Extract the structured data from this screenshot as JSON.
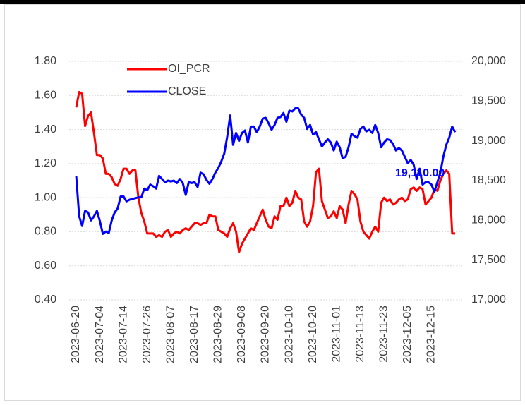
{
  "chart_data": {
    "type": "line",
    "categories": [
      "2023-06-20",
      null,
      null,
      null,
      null,
      null,
      null,
      null,
      "2023-07-04",
      null,
      null,
      null,
      null,
      null,
      null,
      null,
      "2023-07-14",
      null,
      null,
      null,
      null,
      null,
      null,
      null,
      "2023-07-26",
      null,
      null,
      null,
      null,
      null,
      null,
      null,
      "2023-08-07",
      null,
      null,
      null,
      null,
      null,
      null,
      null,
      "2023-08-17",
      null,
      null,
      null,
      null,
      null,
      null,
      null,
      "2023-08-29",
      null,
      null,
      null,
      null,
      null,
      null,
      null,
      "2023-09-08",
      null,
      null,
      null,
      null,
      null,
      null,
      null,
      "2023-09-20",
      null,
      null,
      null,
      null,
      null,
      null,
      null,
      "2023-10-10",
      null,
      null,
      null,
      null,
      null,
      null,
      null,
      "2023-10-20",
      null,
      null,
      null,
      null,
      null,
      null,
      null,
      "2023-11-01",
      null,
      null,
      null,
      null,
      null,
      null,
      null,
      "2023-11-13",
      null,
      null,
      null,
      null,
      null,
      null,
      null,
      "2023-11-23",
      null,
      null,
      null,
      null,
      null,
      null,
      null,
      "2023-12-05",
      null,
      null,
      null,
      null,
      null,
      null,
      null,
      "2023-12-15",
      null,
      null,
      null,
      null,
      null,
      null,
      null,
      null
    ],
    "series": [
      {
        "name": "OI_PCR",
        "color": "#ff0000",
        "values": [
          1.53,
          1.62,
          1.61,
          1.42,
          1.48,
          1.5,
          1.38,
          1.25,
          1.25,
          1.23,
          1.14,
          1.14,
          1.12,
          1.08,
          1.07,
          1.11,
          1.17,
          1.17,
          1.14,
          1.16,
          1.16,
          1.0,
          0.91,
          0.86,
          0.79,
          0.79,
          0.79,
          0.77,
          0.78,
          0.77,
          0.8,
          0.81,
          0.77,
          0.79,
          0.8,
          0.79,
          0.81,
          0.82,
          0.81,
          0.83,
          0.85,
          0.85,
          0.84,
          0.85,
          0.85,
          0.9,
          0.89,
          0.89,
          0.81,
          0.8,
          0.79,
          0.77,
          0.82,
          0.85,
          0.8,
          0.68,
          0.73,
          0.76,
          0.79,
          0.82,
          0.81,
          0.85,
          0.89,
          0.93,
          0.87,
          0.83,
          0.82,
          0.89,
          0.87,
          0.95,
          0.95,
          1.0,
          0.95,
          0.97,
          1.04,
          1.0,
          0.99,
          0.86,
          0.83,
          0.86,
          0.95,
          1.15,
          1.17,
          0.98,
          0.93,
          0.88,
          0.89,
          0.92,
          0.88,
          0.95,
          0.93,
          0.85,
          0.96,
          1.04,
          1.02,
          0.99,
          0.86,
          0.8,
          0.78,
          0.76,
          0.8,
          0.83,
          0.8,
          0.97,
          1.0,
          0.98,
          0.99,
          0.96,
          0.97,
          0.99,
          1.0,
          0.98,
          0.99,
          1.05,
          1.06,
          1.04,
          1.06,
          1.05,
          0.96,
          0.98,
          1.0,
          1.05,
          1.04,
          1.1,
          1.14,
          1.16,
          1.14,
          0.79,
          0.79
        ]
      },
      {
        "name": "CLOSE",
        "color": "#0000ff",
        "axis": "y2",
        "values": [
          18560,
          18050,
          17930,
          18120,
          18100,
          18000,
          18050,
          18120,
          17990,
          17830,
          17860,
          17840,
          18000,
          18100,
          18150,
          18300,
          18300,
          18240,
          18260,
          18270,
          18280,
          18290,
          18290,
          18400,
          18380,
          18450,
          18430,
          18400,
          18560,
          18520,
          18480,
          18500,
          18490,
          18500,
          18470,
          18520,
          18470,
          18320,
          18480,
          18470,
          18480,
          18420,
          18600,
          18580,
          18510,
          18460,
          18520,
          18600,
          18660,
          18740,
          18840,
          19050,
          19320,
          18950,
          19100,
          19000,
          19100,
          19130,
          18980,
          19180,
          19180,
          19110,
          19180,
          19280,
          19290,
          19220,
          19140,
          19200,
          19290,
          19300,
          19350,
          19240,
          19380,
          19370,
          19410,
          19410,
          19330,
          19290,
          19150,
          19200,
          19080,
          19110,
          19020,
          18930,
          18980,
          19020,
          18980,
          18880,
          18990,
          18920,
          18780,
          18800,
          18920,
          19090,
          19060,
          19040,
          19150,
          19180,
          19120,
          19140,
          19100,
          19200,
          19100,
          18920,
          18980,
          19020,
          19010,
          18960,
          18880,
          18910,
          18880,
          18800,
          18720,
          18760,
          18700,
          18520,
          18650,
          18450,
          18480,
          18480,
          18450,
          18360,
          18480,
          18600,
          18800,
          18950,
          19040,
          19180,
          19110
        ]
      }
    ],
    "ylim": [
      0.4,
      1.8
    ],
    "yticks": [
      {
        "value": 0.4,
        "label": "0.40"
      },
      {
        "value": 0.6,
        "label": "0.60"
      },
      {
        "value": 0.8,
        "label": "0.80"
      },
      {
        "value": 1.0,
        "label": "1.00"
      },
      {
        "value": 1.2,
        "label": "1.20"
      },
      {
        "value": 1.4,
        "label": "1.40"
      },
      {
        "value": 1.6,
        "label": "1.60"
      },
      {
        "value": 1.8,
        "label": "1.80"
      }
    ],
    "y2lim": [
      17000,
      20000
    ],
    "y2ticks": [
      {
        "value": 17000,
        "label": "17,000"
      },
      {
        "value": 17500,
        "label": "17,500"
      },
      {
        "value": 18000,
        "label": "18,000"
      },
      {
        "value": 18500,
        "label": "18,500"
      },
      {
        "value": 19000,
        "label": "19,000"
      },
      {
        "value": 19500,
        "label": "19,500"
      },
      {
        "value": 20000,
        "label": "20,000"
      }
    ],
    "grid": true,
    "legend": "upper-left",
    "annotation": "19,110.00"
  }
}
